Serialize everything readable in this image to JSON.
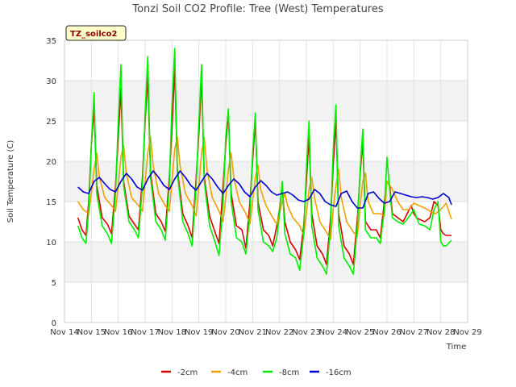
{
  "chart_data": {
    "type": "line",
    "title": "Tonzi Soil CO2 Profile: Tree (West) Temperatures",
    "xlabel": "Time",
    "ylabel": "Soil Temperature (C)",
    "badge": "TZ_soilco2",
    "ylim": [
      0,
      35
    ],
    "y_ticks": [
      0,
      5,
      10,
      15,
      20,
      25,
      30,
      35
    ],
    "xlim": [
      14,
      29
    ],
    "x_ticks": [
      14,
      15,
      16,
      17,
      18,
      19,
      20,
      21,
      22,
      23,
      24,
      25,
      26,
      27,
      28,
      29
    ],
    "x_tick_labels": [
      "Nov 14",
      "Nov 15",
      "Nov 16",
      "Nov 17",
      "Nov 18",
      "Nov 19",
      "Nov 20",
      "Nov 21",
      "Nov 22",
      "Nov 23",
      "Nov 24",
      "Nov 25",
      "Nov 26",
      "Nov 27",
      "Nov 28",
      "Nov 29"
    ],
    "grid": true,
    "banded_background": true,
    "legend_position": "bottom",
    "series": [
      {
        "name": "-2cm",
        "color": "#dd0000",
        "x": [
          14.5,
          14.65,
          14.8,
          14.9,
          15.0,
          15.1,
          15.2,
          15.4,
          15.6,
          15.75,
          15.9,
          16.0,
          16.1,
          16.2,
          16.4,
          16.6,
          16.75,
          16.9,
          17.0,
          17.1,
          17.2,
          17.4,
          17.6,
          17.75,
          17.9,
          18.0,
          18.1,
          18.2,
          18.4,
          18.6,
          18.75,
          18.9,
          19.0,
          19.1,
          19.2,
          19.4,
          19.6,
          19.75,
          19.9,
          20.0,
          20.1,
          20.2,
          20.4,
          20.6,
          20.75,
          20.9,
          21.0,
          21.1,
          21.2,
          21.4,
          21.6,
          21.75,
          21.9,
          22.0,
          22.1,
          22.2,
          22.4,
          22.6,
          22.75,
          22.9,
          23.0,
          23.1,
          23.2,
          23.4,
          23.6,
          23.75,
          23.9,
          24.0,
          24.1,
          24.2,
          24.4,
          24.6,
          24.75,
          24.9,
          25.0,
          25.1,
          25.2,
          25.4,
          25.6,
          25.75,
          25.9,
          26.0,
          26.1,
          26.2,
          26.4,
          26.6,
          26.75,
          26.9,
          27.0,
          27.1,
          27.2,
          27.4,
          27.6,
          27.75,
          27.9,
          28.0,
          28.1,
          28.2,
          28.4
        ],
        "y": [
          13.0,
          11.5,
          10.8,
          15.0,
          22.0,
          26.5,
          17.0,
          13.0,
          12.2,
          11.0,
          17.0,
          23.0,
          29.0,
          17.5,
          13.2,
          12.2,
          11.5,
          18.0,
          25.0,
          30.5,
          18.5,
          13.5,
          12.5,
          11.3,
          18.0,
          24.0,
          31.5,
          19.0,
          13.5,
          12.0,
          10.5,
          18.0,
          23.5,
          30.5,
          18.0,
          13.2,
          11.2,
          9.8,
          17.0,
          22.0,
          26.0,
          16.0,
          12.0,
          11.5,
          9.2,
          15.0,
          20.0,
          25.0,
          15.0,
          11.5,
          10.8,
          9.5,
          12.0,
          14.0,
          17.0,
          12.5,
          10.0,
          9.0,
          7.8,
          12.0,
          17.5,
          23.0,
          13.5,
          9.5,
          8.5,
          7.2,
          13.0,
          19.5,
          25.0,
          13.5,
          9.5,
          8.5,
          7.2,
          13.0,
          18.5,
          22.5,
          12.5,
          11.5,
          11.5,
          10.5,
          15.0,
          17.5,
          17.0,
          13.5,
          13.0,
          12.5,
          13.5,
          14.5,
          13.5,
          13.0,
          12.8,
          12.5,
          13.0,
          15.0,
          14.5,
          11.5,
          11.0,
          10.8,
          10.8
        ]
      },
      {
        "name": "-4cm",
        "color": "#f0a000",
        "x": [
          14.5,
          14.7,
          14.9,
          15.0,
          15.1,
          15.2,
          15.3,
          15.5,
          15.75,
          15.9,
          16.0,
          16.1,
          16.2,
          16.3,
          16.5,
          16.75,
          16.9,
          17.0,
          17.1,
          17.2,
          17.3,
          17.5,
          17.75,
          17.9,
          18.0,
          18.1,
          18.2,
          18.3,
          18.5,
          18.75,
          18.9,
          19.0,
          19.1,
          19.2,
          19.3,
          19.5,
          19.75,
          19.9,
          20.0,
          20.1,
          20.2,
          20.3,
          20.5,
          20.75,
          20.9,
          21.0,
          21.1,
          21.2,
          21.3,
          21.5,
          21.75,
          21.9,
          22.0,
          22.1,
          22.2,
          22.3,
          22.5,
          22.75,
          22.9,
          23.0,
          23.1,
          23.2,
          23.3,
          23.5,
          23.75,
          23.9,
          24.0,
          24.1,
          24.2,
          24.3,
          24.5,
          24.75,
          24.9,
          25.0,
          25.1,
          25.2,
          25.3,
          25.5,
          25.75,
          25.9,
          26.0,
          26.2,
          26.4,
          26.6,
          26.8,
          27.0,
          27.2,
          27.4,
          27.6,
          27.8,
          28.0,
          28.2,
          28.4
        ],
        "y": [
          15.0,
          14.0,
          13.5,
          16.0,
          19.0,
          21.0,
          18.0,
          15.5,
          14.5,
          13.8,
          17.0,
          20.5,
          22.0,
          18.5,
          15.5,
          14.5,
          13.8,
          17.5,
          21.0,
          23.0,
          19.5,
          16.0,
          14.5,
          13.8,
          17.5,
          21.5,
          23.0,
          19.5,
          16.0,
          14.5,
          13.2,
          17.0,
          21.0,
          23.0,
          19.0,
          15.5,
          13.8,
          12.5,
          15.5,
          19.0,
          21.0,
          18.0,
          15.0,
          13.5,
          12.2,
          15.0,
          18.0,
          19.5,
          16.5,
          14.5,
          13.0,
          12.2,
          13.5,
          15.0,
          16.0,
          14.5,
          13.0,
          12.0,
          10.8,
          13.5,
          16.5,
          18.0,
          15.5,
          12.5,
          11.2,
          10.3,
          14.0,
          17.0,
          19.0,
          15.5,
          12.5,
          11.2,
          10.7,
          14.5,
          17.5,
          18.5,
          15.0,
          13.5,
          13.5,
          13.2,
          17.5,
          16.5,
          15.0,
          14.0,
          14.0,
          14.8,
          14.5,
          14.2,
          13.8,
          13.5,
          14.0,
          14.8,
          12.8
        ]
      },
      {
        "name": "-8cm",
        "color": "#00ee00",
        "x": [
          14.5,
          14.65,
          14.8,
          14.9,
          15.0,
          15.1,
          15.2,
          15.4,
          15.6,
          15.75,
          15.9,
          16.0,
          16.1,
          16.2,
          16.4,
          16.6,
          16.75,
          16.9,
          17.0,
          17.1,
          17.2,
          17.4,
          17.6,
          17.75,
          17.9,
          18.0,
          18.1,
          18.2,
          18.4,
          18.6,
          18.75,
          18.9,
          19.0,
          19.1,
          19.2,
          19.4,
          19.6,
          19.75,
          19.9,
          20.0,
          20.1,
          20.2,
          20.4,
          20.6,
          20.75,
          20.9,
          21.0,
          21.1,
          21.2,
          21.4,
          21.6,
          21.75,
          21.9,
          22.0,
          22.1,
          22.2,
          22.4,
          22.6,
          22.75,
          22.9,
          23.0,
          23.1,
          23.2,
          23.4,
          23.6,
          23.75,
          23.9,
          24.0,
          24.1,
          24.2,
          24.4,
          24.6,
          24.75,
          24.9,
          25.0,
          25.1,
          25.2,
          25.4,
          25.6,
          25.75,
          25.9,
          26.0,
          26.1,
          26.2,
          26.4,
          26.6,
          26.75,
          26.9,
          27.0,
          27.1,
          27.2,
          27.4,
          27.6,
          27.75,
          27.9,
          28.0,
          28.1,
          28.2,
          28.4
        ],
        "y": [
          12.0,
          10.5,
          9.8,
          14.0,
          22.0,
          28.5,
          16.0,
          12.0,
          11.0,
          9.8,
          16.0,
          25.0,
          32.0,
          17.0,
          12.5,
          11.5,
          10.5,
          17.0,
          26.0,
          33.0,
          18.0,
          12.5,
          11.5,
          10.2,
          17.0,
          27.0,
          34.0,
          18.5,
          12.5,
          11.0,
          9.5,
          17.0,
          25.0,
          32.0,
          17.5,
          12.0,
          10.0,
          8.3,
          15.0,
          23.0,
          26.5,
          15.0,
          10.5,
          10.0,
          8.5,
          13.5,
          21.0,
          26.0,
          14.0,
          10.0,
          9.5,
          8.8,
          10.5,
          13.5,
          17.5,
          11.0,
          8.5,
          8.0,
          6.5,
          11.0,
          19.0,
          25.0,
          12.0,
          8.0,
          7.0,
          6.0,
          12.0,
          21.5,
          27.0,
          12.0,
          8.0,
          7.0,
          6.0,
          12.0,
          19.0,
          24.0,
          11.5,
          10.5,
          10.5,
          9.8,
          14.0,
          20.5,
          16.5,
          13.0,
          12.5,
          12.2,
          12.8,
          13.5,
          14.0,
          13.0,
          12.2,
          12.0,
          11.5,
          14.0,
          15.0,
          10.0,
          9.5,
          9.5,
          10.2
        ]
      },
      {
        "name": "-16cm",
        "color": "#0000cc",
        "x": [
          14.5,
          14.7,
          14.9,
          15.1,
          15.3,
          15.5,
          15.7,
          15.9,
          16.1,
          16.3,
          16.5,
          16.7,
          16.9,
          17.1,
          17.3,
          17.5,
          17.7,
          17.9,
          18.1,
          18.3,
          18.5,
          18.7,
          18.9,
          19.1,
          19.3,
          19.5,
          19.7,
          19.9,
          20.1,
          20.3,
          20.5,
          20.7,
          20.9,
          21.1,
          21.3,
          21.5,
          21.7,
          21.9,
          22.1,
          22.3,
          22.5,
          22.7,
          22.9,
          23.1,
          23.3,
          23.5,
          23.7,
          23.9,
          24.1,
          24.3,
          24.5,
          24.7,
          24.9,
          25.1,
          25.3,
          25.5,
          25.7,
          25.9,
          26.1,
          26.3,
          26.5,
          26.7,
          26.9,
          27.1,
          27.3,
          27.5,
          27.7,
          27.9,
          28.1,
          28.3,
          28.4
        ],
        "y": [
          16.8,
          16.2,
          16.0,
          17.5,
          18.0,
          17.2,
          16.5,
          16.2,
          17.5,
          18.5,
          17.8,
          16.8,
          16.4,
          17.8,
          18.8,
          18.0,
          17.0,
          16.5,
          17.8,
          18.8,
          18.0,
          17.0,
          16.4,
          17.5,
          18.5,
          17.8,
          16.8,
          16.0,
          17.0,
          17.8,
          17.2,
          16.2,
          15.6,
          16.8,
          17.6,
          17.0,
          16.2,
          15.8,
          16.0,
          16.2,
          15.8,
          15.2,
          15.0,
          15.3,
          16.5,
          16.0,
          15.0,
          14.6,
          14.4,
          16.0,
          16.3,
          15.0,
          14.2,
          14.2,
          16.0,
          16.2,
          15.4,
          14.8,
          15.0,
          16.2,
          16.0,
          15.8,
          15.6,
          15.5,
          15.6,
          15.5,
          15.3,
          15.5,
          16.0,
          15.5,
          14.6
        ]
      }
    ]
  }
}
